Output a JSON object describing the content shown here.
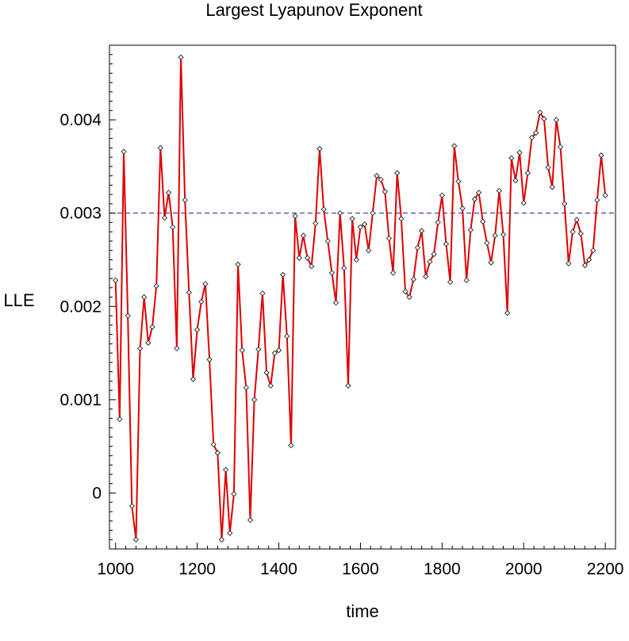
{
  "chart_data": {
    "type": "line",
    "title": "Largest Lyapunov Exponent",
    "xlabel": "time",
    "ylabel": "LLE",
    "xlim": [
      985,
      2225
    ],
    "ylim": [
      -0.0006,
      0.0048
    ],
    "xticks": [
      {
        "value": 1000,
        "label": "1000"
      },
      {
        "value": 1200,
        "label": "1200"
      },
      {
        "value": 1400,
        "label": "1400"
      },
      {
        "value": 1600,
        "label": "1600"
      },
      {
        "value": 1800,
        "label": "1800"
      },
      {
        "value": 2000,
        "label": "2000"
      },
      {
        "value": 2200,
        "label": "2200"
      }
    ],
    "yticks": [
      {
        "value": 0,
        "label": "0"
      },
      {
        "value": 0.001,
        "label": "0.001"
      },
      {
        "value": 0.002,
        "label": "0.002"
      },
      {
        "value": 0.003,
        "label": "0.003"
      },
      {
        "value": 0.004,
        "label": "0.004"
      }
    ],
    "reference_line": {
      "y": 0.003,
      "color": "#1a1aa8",
      "style": "dashed"
    },
    "grid": false,
    "series": [
      {
        "color": "#e00000",
        "marker": "diamond",
        "x": [
          1000,
          1010,
          1020,
          1030,
          1040,
          1050,
          1060,
          1070,
          1080,
          1090,
          1100,
          1110,
          1120,
          1130,
          1140,
          1150,
          1160,
          1170,
          1180,
          1190,
          1200,
          1210,
          1220,
          1230,
          1240,
          1250,
          1260,
          1270,
          1280,
          1290,
          1300,
          1310,
          1320,
          1330,
          1340,
          1350,
          1360,
          1370,
          1380,
          1390,
          1400,
          1410,
          1420,
          1430,
          1440,
          1450,
          1460,
          1470,
          1480,
          1490,
          1500,
          1510,
          1520,
          1530,
          1540,
          1550,
          1560,
          1570,
          1580,
          1590,
          1600,
          1610,
          1620,
          1630,
          1640,
          1650,
          1660,
          1670,
          1680,
          1690,
          1700,
          1710,
          1720,
          1730,
          1740,
          1750,
          1760,
          1770,
          1780,
          1790,
          1800,
          1810,
          1820,
          1830,
          1840,
          1850,
          1860,
          1870,
          1880,
          1890,
          1900,
          1910,
          1920,
          1930,
          1940,
          1950,
          1960,
          1970,
          1980,
          1990,
          2000,
          2010,
          2020,
          2030,
          2040,
          2050,
          2060,
          2070,
          2080,
          2090,
          2100,
          2110,
          2120,
          2130,
          2140,
          2150,
          2160,
          2170,
          2180,
          2190,
          2200
        ],
        "y": [
          0.00228,
          0.00079,
          0.00366,
          0.0019,
          -0.00014,
          -0.0005,
          0.00155,
          0.0021,
          0.00161,
          0.00178,
          0.00222,
          0.0037,
          0.00295,
          0.00322,
          0.00285,
          0.00155,
          0.00467,
          0.00314,
          0.00215,
          0.00122,
          0.00175,
          0.00205,
          0.00224,
          0.00143,
          0.00052,
          0.00043,
          -0.0005,
          0.00025,
          -0.00043,
          -1e-05,
          0.00245,
          0.00153,
          0.00113,
          -0.00029,
          0.001,
          0.00154,
          0.00214,
          0.00129,
          0.00115,
          0.0015,
          0.00153,
          0.00234,
          0.00168,
          0.00051,
          0.00297,
          0.00252,
          0.00276,
          0.00252,
          0.00243,
          0.00289,
          0.00369,
          0.00304,
          0.0027,
          0.00236,
          0.00204,
          0.003,
          0.00241,
          0.00115,
          0.00294,
          0.0025,
          0.00285,
          0.00288,
          0.0026,
          0.003,
          0.0034,
          0.00336,
          0.00323,
          0.00273,
          0.00236,
          0.00343,
          0.00294,
          0.00216,
          0.0021,
          0.00229,
          0.00263,
          0.00281,
          0.00232,
          0.00248,
          0.00256,
          0.0029,
          0.00319,
          0.00267,
          0.00226,
          0.00372,
          0.00334,
          0.00305,
          0.00228,
          0.00282,
          0.00315,
          0.00322,
          0.00291,
          0.00268,
          0.00247,
          0.00276,
          0.00324,
          0.00277,
          0.00193,
          0.00359,
          0.00335,
          0.00365,
          0.00311,
          0.00343,
          0.00381,
          0.00386,
          0.00408,
          0.00401,
          0.00349,
          0.00328,
          0.004,
          0.00371,
          0.0031,
          0.00246,
          0.0028,
          0.00293,
          0.00278,
          0.00244,
          0.0025,
          0.0026,
          0.00314,
          0.00362,
          0.00319
        ]
      }
    ]
  }
}
